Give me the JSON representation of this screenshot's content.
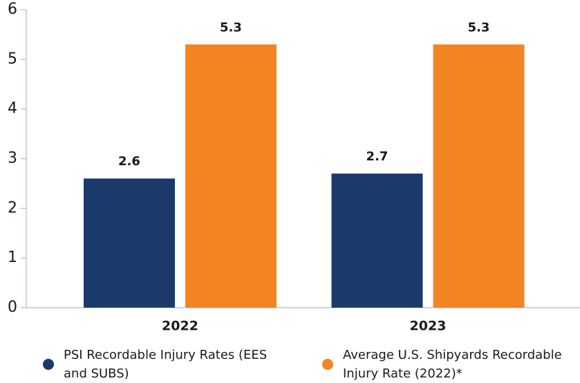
{
  "chart_data": {
    "type": "bar",
    "categories": [
      "2022",
      "2023"
    ],
    "series": [
      {
        "name": "PSI Recordable Injury Rates (EES and SUBS)",
        "color": "#1b3a6b",
        "values": [
          2.6,
          2.7
        ]
      },
      {
        "name": "Average U.S. Shipyards Recordable Injury Rate (2022)*",
        "color": "#f28522",
        "values": [
          5.3,
          5.3
        ]
      }
    ],
    "ylim": [
      0,
      6
    ],
    "yticks": [
      0,
      1,
      2,
      3,
      4,
      5,
      6
    ],
    "grid": false,
    "legend": "bottom"
  }
}
